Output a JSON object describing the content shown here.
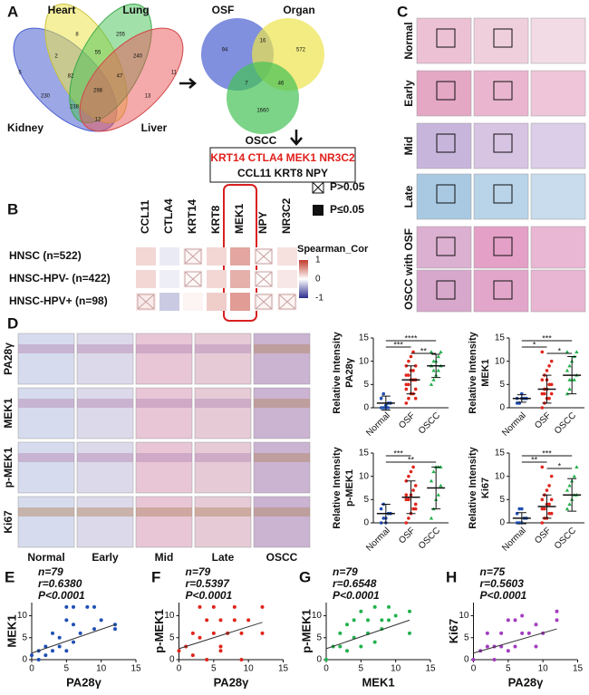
{
  "labels": [
    "A",
    "B",
    "C",
    "D",
    "E",
    "F",
    "G",
    "H"
  ],
  "panel_a": {
    "venn1": {
      "sets": [
        "Heart",
        "Lung",
        "Kidney",
        "Liver"
      ],
      "counts": [
        8,
        255,
        5,
        11,
        2,
        55,
        240,
        82,
        47,
        230,
        298,
        13,
        238,
        12
      ]
    },
    "venn2": {
      "sets": [
        "OSF",
        "Organ",
        "OSCC"
      ],
      "counts": [
        94,
        16,
        572,
        7,
        46,
        1660
      ]
    },
    "genes_highlight": "KRT14  CTLA4  MEK1  NR3C2",
    "genes_other": "CCL11  KRT8  NPY"
  },
  "panel_b": {
    "type": "heatmap",
    "columns": [
      "CCL11",
      "CTLA4",
      "KRT14",
      "KRT8",
      "MEK1",
      "NPY",
      "NR3C2"
    ],
    "rows": [
      "HNSC (n=522)",
      "HNSC-HPV- (n=422)",
      "HNSC-HPV+ (n=98)"
    ],
    "values": [
      [
        0.2,
        -0.1,
        0.05,
        0.2,
        0.45,
        0.03,
        0.15
      ],
      [
        0.2,
        -0.08,
        0.03,
        0.2,
        0.4,
        0.02,
        0.12
      ],
      [
        0.1,
        -0.25,
        0.05,
        0.25,
        0.5,
        0.05,
        0.05
      ]
    ],
    "significant": [
      [
        true,
        true,
        false,
        true,
        true,
        false,
        true
      ],
      [
        true,
        true,
        false,
        true,
        true,
        false,
        true
      ],
      [
        false,
        true,
        true,
        true,
        true,
        false,
        false
      ]
    ],
    "legend": {
      "not_significant": "P>0.05",
      "significant": "P≤0.05",
      "title": "Spearman_Cor",
      "lim": [
        -1,
        1
      ],
      "ticks": [
        1,
        0,
        -1
      ]
    }
  },
  "panel_c": {
    "rows": [
      "Normal",
      "Early",
      "Mid",
      "Late",
      "OSCC with OSF"
    ]
  },
  "panel_d": {
    "rows": [
      "PA28γ",
      "MEK1",
      "p-MEK1",
      "Ki67"
    ],
    "columns": [
      "Normal",
      "Early",
      "Mid",
      "Late",
      "OSCC"
    ],
    "charts": [
      {
        "type": "dot",
        "ylabel": [
          "Relative Intensity",
          "PA28γ"
        ],
        "categories": [
          "Normal",
          "OSF",
          "OSCC"
        ],
        "colors": [
          "#1f4fb4",
          "#e0251b",
          "#22b14c"
        ],
        "ylim": [
          0,
          15
        ],
        "yticks": [
          0,
          5,
          10,
          15
        ],
        "groups": [
          {
            "values": [
              0,
              0,
              0,
              1,
              1,
              2,
              3,
              0.5,
              0
            ],
            "mean": 1,
            "sd": 1.5
          },
          {
            "values": [
              1,
              2,
              3,
              3,
              4,
              5,
              5,
              6,
              6,
              6,
              7,
              7,
              8,
              8,
              9,
              9,
              10,
              11,
              12,
              2,
              4
            ],
            "mean": 6,
            "sd": 3
          },
          {
            "values": [
              5,
              6,
              7,
              8,
              9,
              9,
              10,
              10,
              11,
              12,
              12,
              8
            ],
            "mean": 9,
            "sd": 2.5
          }
        ],
        "comparisons": [
          {
            "pair": [
              0,
              2
            ],
            "label": "****"
          },
          {
            "pair": [
              0,
              1
            ],
            "label": "***"
          },
          {
            "pair": [
              1,
              2
            ],
            "label": "**"
          }
        ]
      },
      {
        "type": "dot",
        "ylabel": [
          "Relative Intensity",
          "MEK1"
        ],
        "categories": [
          "Normal",
          "OSF",
          "OSCC"
        ],
        "colors": [
          "#1f4fb4",
          "#e0251b",
          "#22b14c"
        ],
        "ylim": [
          0,
          15
        ],
        "yticks": [
          0,
          5,
          10,
          15
        ],
        "groups": [
          {
            "values": [
              1,
              1,
              2,
              2,
              2,
              2,
              1,
              3
            ],
            "mean": 2,
            "sd": 0.8
          },
          {
            "values": [
              0,
              1,
              2,
              2,
              3,
              3,
              4,
              4,
              5,
              5,
              6,
              7,
              8,
              9,
              10,
              12,
              3,
              6
            ],
            "mean": 4,
            "sd": 3
          },
          {
            "values": [
              3,
              4,
              6,
              6,
              7,
              8,
              9,
              10,
              11,
              12,
              12,
              6
            ],
            "mean": 7,
            "sd": 4
          }
        ],
        "comparisons": [
          {
            "pair": [
              0,
              2
            ],
            "label": "***"
          },
          {
            "pair": [
              0,
              1
            ],
            "label": "*"
          },
          {
            "pair": [
              1,
              2
            ],
            "label": "*"
          }
        ]
      },
      {
        "type": "dot",
        "ylabel": [
          "Relative Intensity",
          "p-MEK1"
        ],
        "categories": [
          "Normal",
          "OSF",
          "OSCC"
        ],
        "colors": [
          "#1f4fb4",
          "#e0251b",
          "#22b14c"
        ],
        "ylim": [
          0,
          15
        ],
        "yticks": [
          0,
          5,
          10,
          15
        ],
        "groups": [
          {
            "values": [
              0,
              1,
              1,
              2,
              2,
              3,
              4,
              0
            ],
            "mean": 2,
            "sd": 2
          },
          {
            "values": [
              0,
              1,
              2,
              3,
              4,
              5,
              5,
              6,
              7,
              8,
              9,
              10,
              11,
              12,
              3,
              6
            ],
            "mean": 5.5,
            "sd": 3.5
          },
          {
            "values": [
              1,
              3,
              5,
              6,
              8,
              9,
              11,
              12,
              12,
              12
            ],
            "mean": 7.5,
            "sd": 4.5
          }
        ],
        "comparisons": [
          {
            "pair": [
              0,
              1
            ],
            "label": "***"
          },
          {
            "pair": [
              0,
              2
            ],
            "label": "**"
          }
        ]
      },
      {
        "type": "dot",
        "ylabel": [
          "Relative Intensity",
          "Ki67"
        ],
        "categories": [
          "Normal",
          "OSF",
          "OSCC"
        ],
        "colors": [
          "#1f4fb4",
          "#e0251b",
          "#22b14c"
        ],
        "ylim": [
          0,
          15
        ],
        "yticks": [
          0,
          5,
          10,
          15
        ],
        "groups": [
          {
            "values": [
              0,
              0,
              0,
              1,
              1,
              2,
              3,
              3
            ],
            "mean": 1,
            "sd": 1.2
          },
          {
            "values": [
              0,
              1,
              1,
              2,
              2,
              3,
              3,
              4,
              4,
              5,
              5,
              6,
              7,
              8,
              10,
              12
            ],
            "mean": 3.5,
            "sd": 2.5
          },
          {
            "values": [
              3,
              4,
              5,
              6,
              6,
              7,
              8,
              9,
              10,
              12
            ],
            "mean": 6,
            "sd": 3.5
          }
        ],
        "comparisons": [
          {
            "pair": [
              0,
              2
            ],
            "label": "***"
          },
          {
            "pair": [
              0,
              1
            ],
            "label": "**"
          },
          {
            "pair": [
              1,
              2
            ],
            "label": "*"
          }
        ]
      }
    ]
  },
  "panel_efgh": [
    {
      "type": "scatter",
      "n": "n=79",
      "r": "r=0.6380",
      "p": "P<0.0001",
      "xlabel": "PA28γ",
      "ylabel": "MEK1",
      "color": "#1f4fb4",
      "x": [
        0,
        1,
        1,
        2,
        2,
        3,
        3,
        4,
        4,
        5,
        5,
        5,
        6,
        6,
        6,
        7,
        8,
        9,
        9,
        10,
        12,
        12
      ],
      "y": [
        1,
        2,
        0,
        3,
        1,
        2,
        6,
        3,
        5,
        2,
        9,
        12,
        4,
        8,
        12,
        6,
        12,
        7,
        12,
        9,
        7,
        8
      ],
      "trend": {
        "x": [
          0,
          12
        ],
        "y": [
          1.5,
          8
        ]
      },
      "xlim": [
        0,
        15
      ],
      "ylim": [
        0,
        13
      ],
      "xticks": [
        0,
        5,
        10,
        15
      ],
      "yticks": [
        0,
        5,
        10
      ]
    },
    {
      "type": "scatter",
      "n": "n=79",
      "r": "r=0.5397",
      "p": "P<0.0001",
      "xlabel": "PA28γ",
      "ylabel": "p-MEK1",
      "color": "#e0251b",
      "x": [
        0,
        1,
        2,
        2,
        3,
        3,
        4,
        4,
        5,
        5,
        6,
        6,
        6,
        7,
        8,
        8,
        9,
        9,
        10,
        12,
        12
      ],
      "y": [
        2,
        3,
        1,
        6,
        5,
        12,
        0,
        9,
        6,
        12,
        3,
        9,
        2,
        6,
        9,
        12,
        0,
        6,
        9,
        6,
        12
      ],
      "trend": {
        "x": [
          0,
          12
        ],
        "y": [
          2.5,
          8.5
        ]
      },
      "xlim": [
        0,
        15
      ],
      "ylim": [
        0,
        13
      ],
      "xticks": [
        0,
        5,
        10,
        15
      ],
      "yticks": [
        0,
        5,
        10
      ]
    },
    {
      "type": "scatter",
      "n": "n=79",
      "r": "r=0.6548",
      "p": "P<0.0001",
      "xlabel": "MEK1",
      "ylabel": "p-MEK1",
      "color": "#22b14c",
      "x": [
        0,
        1,
        2,
        2,
        3,
        3,
        4,
        4,
        5,
        5,
        6,
        6,
        7,
        7,
        8,
        8,
        9,
        9,
        10,
        12,
        12
      ],
      "y": [
        0,
        3,
        3,
        6,
        2,
        8,
        5,
        9,
        3,
        11,
        6,
        9,
        4,
        12,
        7,
        9,
        9,
        12,
        10,
        6,
        11
      ],
      "trend": {
        "x": [
          0,
          12
        ],
        "y": [
          2.5,
          9
        ]
      },
      "xlim": [
        0,
        15
      ],
      "ylim": [
        0,
        13
      ],
      "xticks": [
        0,
        5,
        10,
        15
      ],
      "yticks": [
        0,
        5,
        10
      ]
    },
    {
      "type": "scatter",
      "n": "n=75",
      "r": "r=0.5603",
      "p": "P<0.0001",
      "xlabel": "PA28γ",
      "ylabel": "Ki67",
      "color": "#a23cc0",
      "x": [
        0,
        1,
        2,
        2,
        3,
        3,
        4,
        4,
        5,
        5,
        6,
        6,
        7,
        7,
        8,
        9,
        9,
        10,
        12,
        12
      ],
      "y": [
        0,
        2,
        3,
        6,
        0,
        3,
        3,
        6,
        2,
        9,
        3,
        9,
        6,
        10,
        6,
        3,
        8,
        6,
        9,
        11
      ],
      "trend": {
        "x": [
          0,
          12
        ],
        "y": [
          1.5,
          7
        ]
      },
      "xlim": [
        0,
        15
      ],
      "ylim": [
        0,
        13
      ],
      "xticks": [
        0,
        5,
        10,
        15
      ],
      "yticks": [
        0,
        5,
        10
      ]
    }
  ]
}
